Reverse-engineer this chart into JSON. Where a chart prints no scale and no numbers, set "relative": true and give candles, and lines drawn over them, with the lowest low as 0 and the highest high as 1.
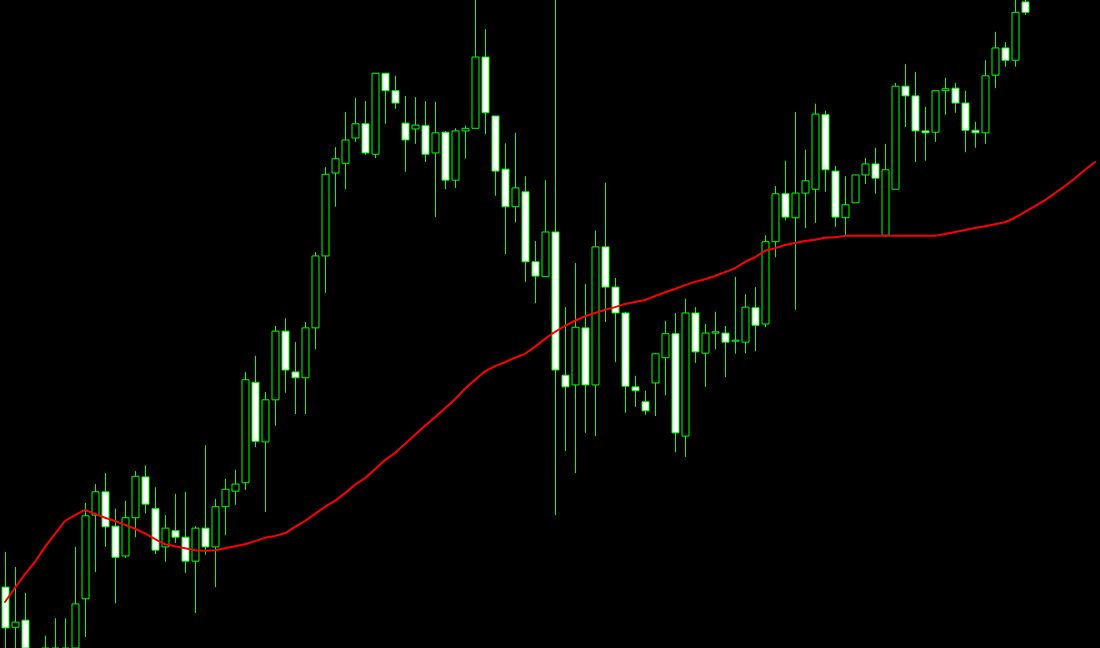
{
  "chart_data": {
    "type": "candlestick",
    "relative": true,
    "color": "#00ff00",
    "grid": false,
    "legend": false,
    "tick_labels": false,
    "categories": [
      null,
      null,
      null,
      null,
      null,
      null,
      null,
      null,
      null,
      null,
      null,
      null,
      null,
      null,
      null,
      null,
      null,
      null,
      null,
      null,
      null,
      null,
      null,
      null,
      null,
      null,
      null,
      null,
      null,
      null,
      null,
      null,
      null,
      null,
      null,
      null,
      null,
      null,
      null,
      null,
      null,
      null,
      null,
      null,
      null,
      null,
      null,
      null,
      null,
      null,
      null,
      null,
      null,
      null,
      null,
      null,
      null,
      null,
      null,
      null,
      null,
      null,
      null,
      null,
      null,
      null,
      null,
      null,
      null,
      null,
      null,
      null,
      null,
      null,
      null,
      null,
      null,
      null,
      null,
      null,
      null,
      null,
      null,
      null,
      null,
      null,
      null,
      null,
      null,
      null,
      null,
      null,
      null,
      null,
      null,
      null,
      null,
      null,
      null,
      null,
      null,
      null,
      null,
      null,
      null,
      null,
      null,
      null,
      null,
      null
    ],
    "ohlc": [
      [
        0.094,
        0.148,
        0,
        0.031
      ],
      [
        0.032,
        0.125,
        0,
        0.04
      ],
      [
        0.043,
        0.085,
        0,
        0
      ],
      null,
      [
        0,
        0.019,
        0,
        0
      ],
      [
        0,
        0.046,
        0,
        0
      ],
      [
        0,
        0.046,
        0,
        0
      ],
      [
        0,
        0.156,
        0,
        0.068
      ],
      [
        0.076,
        0.224,
        0.017,
        0.204
      ],
      [
        0.205,
        0.253,
        0.117,
        0.241
      ],
      [
        0.241,
        0.27,
        0.156,
        0.187
      ],
      [
        0.188,
        0.215,
        0.069,
        0.14
      ],
      [
        0.142,
        0.227,
        0.139,
        0.201
      ],
      [
        0.201,
        0.273,
        0.171,
        0.265
      ],
      [
        0.264,
        0.282,
        0.208,
        0.222
      ],
      [
        0.215,
        0.248,
        0.145,
        0.151
      ],
      [
        0.156,
        0.205,
        0.133,
        0.185
      ],
      [
        0.181,
        0.238,
        0.162,
        0.171
      ],
      [
        0.171,
        0.241,
        0.116,
        0.134
      ],
      [
        0.134,
        0.188,
        0.054,
        0.185
      ],
      [
        0.185,
        0.313,
        0.144,
        0.156
      ],
      [
        0.156,
        0.23,
        0.094,
        0.218
      ],
      [
        0.218,
        0.261,
        0.174,
        0.245
      ],
      [
        0.242,
        0.275,
        0.221,
        0.253
      ],
      [
        0.255,
        0.426,
        0.244,
        0.414
      ],
      [
        0.41,
        0.451,
        0.31,
        0.319
      ],
      [
        0.318,
        0.395,
        0.21,
        0.383
      ],
      [
        0.383,
        0.497,
        0.343,
        0.489
      ],
      [
        0.489,
        0.509,
        0.394,
        0.429
      ],
      [
        0.426,
        0.472,
        0.361,
        0.417
      ],
      [
        0.417,
        0.503,
        0.361,
        0.494
      ],
      [
        0.494,
        0.611,
        0.461,
        0.605
      ],
      [
        0.605,
        0.742,
        0.548,
        0.731
      ],
      [
        0.733,
        0.773,
        0.681,
        0.755
      ],
      [
        0.748,
        0.827,
        0.708,
        0.784
      ],
      [
        0.787,
        0.849,
        0.781,
        0.809
      ],
      [
        0.809,
        0.844,
        0.761,
        0.764
      ],
      [
        0.762,
        0.887,
        0.756,
        0.887
      ],
      [
        0.887,
        0.887,
        0.809,
        0.86
      ],
      [
        0.86,
        0.883,
        0.832,
        0.841
      ],
      [
        0.81,
        0.852,
        0.735,
        0.784
      ],
      [
        0.801,
        0.85,
        0.778,
        0.807
      ],
      [
        0.806,
        0.844,
        0.75,
        0.762
      ],
      [
        0.764,
        0.843,
        0.665,
        0.795
      ],
      [
        0.796,
        0.798,
        0.708,
        0.722
      ],
      [
        0.722,
        0.802,
        0.71,
        0.798
      ],
      [
        0.798,
        0.806,
        0.755,
        0.802
      ],
      [
        0.802,
        1,
        0.802,
        0.912
      ],
      [
        0.912,
        0.955,
        0.793,
        0.826
      ],
      [
        0.821,
        0.821,
        0.698,
        0.736
      ],
      [
        0.739,
        0.779,
        0.608,
        0.681
      ],
      [
        0.681,
        0.795,
        0.657,
        0.71
      ],
      [
        0.704,
        0.728,
        0.565,
        0.596
      ],
      [
        0.596,
        0.628,
        0.532,
        0.574
      ],
      [
        0.573,
        0.722,
        0.573,
        0.642
      ],
      [
        0.642,
        1,
        0.205,
        0.429
      ],
      [
        0.421,
        0.526,
        0.304,
        0.403
      ],
      [
        0.406,
        0.594,
        0.27,
        0.495
      ],
      [
        0.494,
        0.562,
        0.332,
        0.406
      ],
      [
        0.406,
        0.644,
        0.327,
        0.619
      ],
      [
        0.619,
        0.718,
        0.503,
        0.557
      ],
      [
        0.557,
        0.571,
        0.441,
        0.517
      ],
      [
        0.517,
        0.519,
        0.363,
        0.404
      ],
      [
        0.403,
        0.42,
        0.372,
        0.397
      ],
      [
        0.38,
        0.397,
        0.36,
        0.366
      ],
      [
        0.409,
        0.455,
        0.358,
        0.454
      ],
      [
        0.448,
        0.505,
        0.39,
        0.485
      ],
      [
        0.485,
        0.517,
        0.302,
        0.332
      ],
      [
        0.327,
        0.539,
        0.295,
        0.517
      ],
      [
        0.517,
        0.526,
        0.44,
        0.457
      ],
      [
        0.455,
        0.5,
        0.403,
        0.486
      ],
      [
        0.486,
        0.519,
        0.461,
        0.488
      ],
      [
        0.486,
        0.497,
        0.418,
        0.472
      ],
      [
        0.474,
        0.573,
        0.454,
        0.475
      ],
      [
        0.472,
        0.546,
        0.455,
        0.526
      ],
      [
        0.525,
        0.557,
        0.458,
        0.498
      ],
      [
        0.5,
        0.637,
        0.495,
        0.627
      ],
      [
        0.627,
        0.713,
        0.603,
        0.701
      ],
      [
        0.701,
        0.752,
        0.66,
        0.665
      ],
      [
        0.664,
        0.827,
        0.522,
        0.702
      ],
      [
        0.702,
        0.769,
        0.648,
        0.721
      ],
      [
        0.708,
        0.84,
        0.656,
        0.824
      ],
      [
        0.823,
        0.829,
        0.704,
        0.738
      ],
      [
        0.736,
        0.744,
        0.65,
        0.665
      ],
      [
        0.664,
        0.728,
        0.637,
        0.684
      ],
      [
        0.687,
        0.73,
        0.687,
        0.73
      ],
      [
        0.73,
        0.756,
        0.716,
        0.747
      ],
      [
        0.747,
        0.772,
        0.701,
        0.725
      ],
      [
        0.637,
        0.778,
        0.634,
        0.738
      ],
      [
        0.708,
        0.872,
        0.708,
        0.867
      ],
      [
        0.867,
        0.901,
        0.804,
        0.852
      ],
      [
        0.852,
        0.889,
        0.75,
        0.798
      ],
      [
        0.798,
        0.835,
        0.752,
        0.795
      ],
      [
        0.796,
        0.86,
        0.781,
        0.86
      ],
      [
        0.86,
        0.88,
        0.823,
        0.863
      ],
      [
        0.864,
        0.872,
        0.826,
        0.841
      ],
      [
        0.841,
        0.86,
        0.765,
        0.799
      ],
      [
        0.799,
        0.812,
        0.772,
        0.795
      ],
      [
        0.795,
        0.907,
        0.778,
        0.883
      ],
      [
        0.884,
        0.951,
        0.864,
        0.926
      ],
      [
        0.926,
        0.935,
        0.897,
        0.907
      ],
      [
        0.907,
        1,
        0.897,
        0.981
      ],
      [
        0.997,
        1,
        0.977,
        0.981
      ],
      null,
      null,
      null,
      null,
      null,
      null,
      null
    ],
    "colors": [
      "#ffffff",
      "#00ff00",
      "#ffffff",
      null,
      "#00ff00",
      "#00ff00",
      "#00ff00",
      "#00ff00",
      "#00ff00",
      "#00ff00",
      "#ffffff",
      "#ffffff",
      "#00ff00",
      "#00ff00",
      "#ffffff",
      "#ffffff",
      "#00ff00",
      "#ffffff",
      "#ffffff",
      "#00ff00",
      "#ffffff",
      "#00ff00",
      "#00ff00",
      "#00ff00",
      "#00ff00",
      "#ffffff",
      "#00ff00",
      "#00ff00",
      "#ffffff",
      "#ffffff",
      "#00ff00",
      "#00ff00",
      "#00ff00",
      "#00ff00",
      "#00ff00",
      "#00ff00",
      "#ffffff",
      "#00ff00",
      "#ffffff",
      "#ffffff",
      "#ffffff",
      "#00ff00",
      "#ffffff",
      "#00ff00",
      "#ffffff",
      "#00ff00",
      "#00ff00",
      "#00ff00",
      "#ffffff",
      "#ffffff",
      "#ffffff",
      "#00ff00",
      "#ffffff",
      "#ffffff",
      "#00ff00",
      "#ffffff",
      "#ffffff",
      "#00ff00",
      "#ffffff",
      "#00ff00",
      "#ffffff",
      "#ffffff",
      "#ffffff",
      "#ffffff",
      "#ffffff",
      "#00ff00",
      "#00ff00",
      "#ffffff",
      "#00ff00",
      "#ffffff",
      "#00ff00",
      "#00ff00",
      "#ffffff",
      "#00ff00",
      "#00ff00",
      "#ffffff",
      "#00ff00",
      "#00ff00",
      "#ffffff",
      "#00ff00",
      "#00ff00",
      "#00ff00",
      "#ffffff",
      "#ffffff",
      "#00ff00",
      "#00ff00",
      "#00ff00",
      "#ffffff",
      "#00ff00",
      "#00ff00",
      "#ffffff",
      "#ffffff",
      "#ffffff",
      "#00ff00",
      "#00ff00",
      "#ffffff",
      "#ffffff",
      "#ffffff",
      "#00ff00",
      "#00ff00",
      "#ffffff",
      "#00ff00",
      "#ffffff",
      null,
      null,
      null,
      null,
      null,
      null,
      null
    ],
    "series": [
      {
        "type": "line",
        "color": "#ff0000",
        "values": [
          0.071,
          0.093,
          0.114,
          0.133,
          0.156,
          0.176,
          0.196,
          0.205,
          0.213,
          0.207,
          0.201,
          0.196,
          0.19,
          0.184,
          0.177,
          0.168,
          0.16,
          0.157,
          0.154,
          0.151,
          0.15,
          0.151,
          0.154,
          0.157,
          0.16,
          0.165,
          0.17,
          0.173,
          0.177,
          0.187,
          0.196,
          0.207,
          0.218,
          0.227,
          0.239,
          0.252,
          0.262,
          0.276,
          0.29,
          0.301,
          0.315,
          0.329,
          0.343,
          0.356,
          0.37,
          0.384,
          0.4,
          0.414,
          0.427,
          0.435,
          0.441,
          0.448,
          0.454,
          0.465,
          0.477,
          0.488,
          0.497,
          0.505,
          0.512,
          0.517,
          0.522,
          0.526,
          0.531,
          0.534,
          0.537,
          0.543,
          0.549,
          0.554,
          0.56,
          0.565,
          0.569,
          0.574,
          0.58,
          0.586,
          0.596,
          0.603,
          0.613,
          0.617,
          0.622,
          0.625,
          0.628,
          0.63,
          0.633,
          0.634,
          0.636,
          0.636,
          0.636,
          0.636,
          0.636,
          0.636,
          0.636,
          0.636,
          0.636,
          0.636,
          0.639,
          0.642,
          0.645,
          0.648,
          0.651,
          0.654,
          0.657,
          0.664,
          0.673,
          0.682,
          0.691,
          0.702,
          0.713,
          0.725,
          0.738,
          0.75
        ]
      }
    ]
  }
}
